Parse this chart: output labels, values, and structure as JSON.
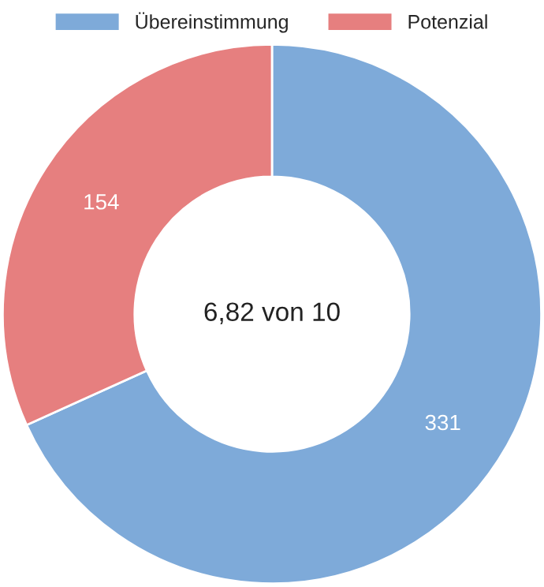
{
  "chart_data": {
    "type": "donut",
    "categories": [
      "Übereinstimmung",
      "Potenzial"
    ],
    "values": [
      331,
      154
    ],
    "colors": [
      "#7eaad9",
      "#e67f7f"
    ],
    "data_labels": true,
    "legend": "top",
    "annotations": [
      "6,82 von 10"
    ]
  }
}
